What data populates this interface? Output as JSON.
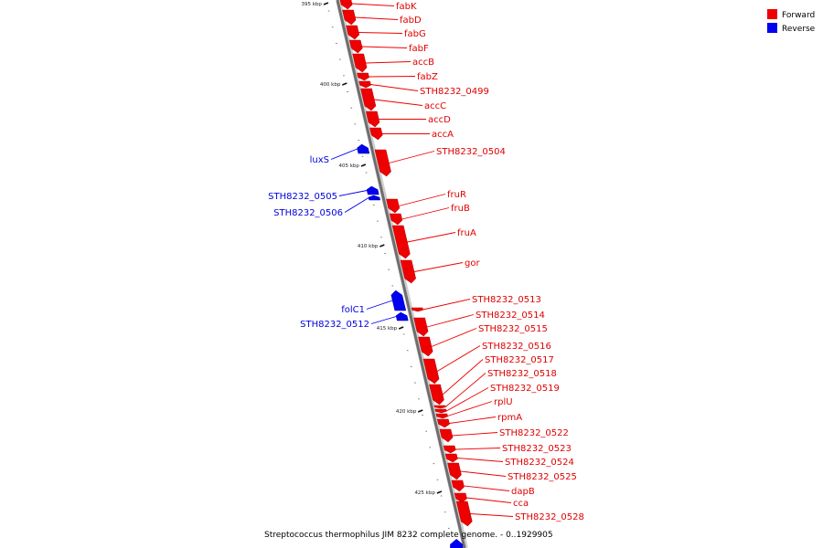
{
  "caption": "Streptococcus thermophilus JIM 8232 complete genome. - 0..1929905",
  "legend": [
    {
      "label": "Forward",
      "color": "#ee0000"
    },
    {
      "label": "Reverse",
      "color": "#0000ee"
    }
  ],
  "ticks": [
    "395 kbp",
    "400 kbp",
    "405 kbp",
    "410 kbp",
    "415 kbp",
    "420 kbp",
    "425 kbp"
  ],
  "genes": [
    {
      "name": "fabK",
      "strand": "forward"
    },
    {
      "name": "fabD",
      "strand": "forward"
    },
    {
      "name": "fabG",
      "strand": "forward"
    },
    {
      "name": "fabF",
      "strand": "forward"
    },
    {
      "name": "accB",
      "strand": "forward"
    },
    {
      "name": "fabZ",
      "strand": "forward"
    },
    {
      "name": "STH8232_0499",
      "strand": "forward"
    },
    {
      "name": "accC",
      "strand": "forward"
    },
    {
      "name": "accD",
      "strand": "forward"
    },
    {
      "name": "accA",
      "strand": "forward"
    },
    {
      "name": "luxS",
      "strand": "reverse"
    },
    {
      "name": "STH8232_0504",
      "strand": "forward"
    },
    {
      "name": "STH8232_0505",
      "strand": "reverse"
    },
    {
      "name": "STH8232_0506",
      "strand": "reverse"
    },
    {
      "name": "fruR",
      "strand": "forward"
    },
    {
      "name": "fruB",
      "strand": "forward"
    },
    {
      "name": "fruA",
      "strand": "forward"
    },
    {
      "name": "gor",
      "strand": "forward"
    },
    {
      "name": "folC1",
      "strand": "reverse"
    },
    {
      "name": "STH8232_0512",
      "strand": "reverse"
    },
    {
      "name": "STH8232_0513",
      "strand": "forward"
    },
    {
      "name": "STH8232_0514",
      "strand": "forward"
    },
    {
      "name": "STH8232_0515",
      "strand": "forward"
    },
    {
      "name": "STH8232_0516",
      "strand": "forward"
    },
    {
      "name": "STH8232_0517",
      "strand": "forward"
    },
    {
      "name": "STH8232_0518",
      "strand": "forward"
    },
    {
      "name": "STH8232_0519",
      "strand": "forward"
    },
    {
      "name": "rplU",
      "strand": "forward"
    },
    {
      "name": "rpmA",
      "strand": "forward"
    },
    {
      "name": "STH8232_0522",
      "strand": "forward"
    },
    {
      "name": "STH8232_0523",
      "strand": "forward"
    },
    {
      "name": "STH8232_0524",
      "strand": "forward"
    },
    {
      "name": "STH8232_0525",
      "strand": "forward"
    },
    {
      "name": "dapB",
      "strand": "forward"
    },
    {
      "name": "cca",
      "strand": "forward"
    },
    {
      "name": "STH8232_0528",
      "strand": "forward"
    }
  ]
}
